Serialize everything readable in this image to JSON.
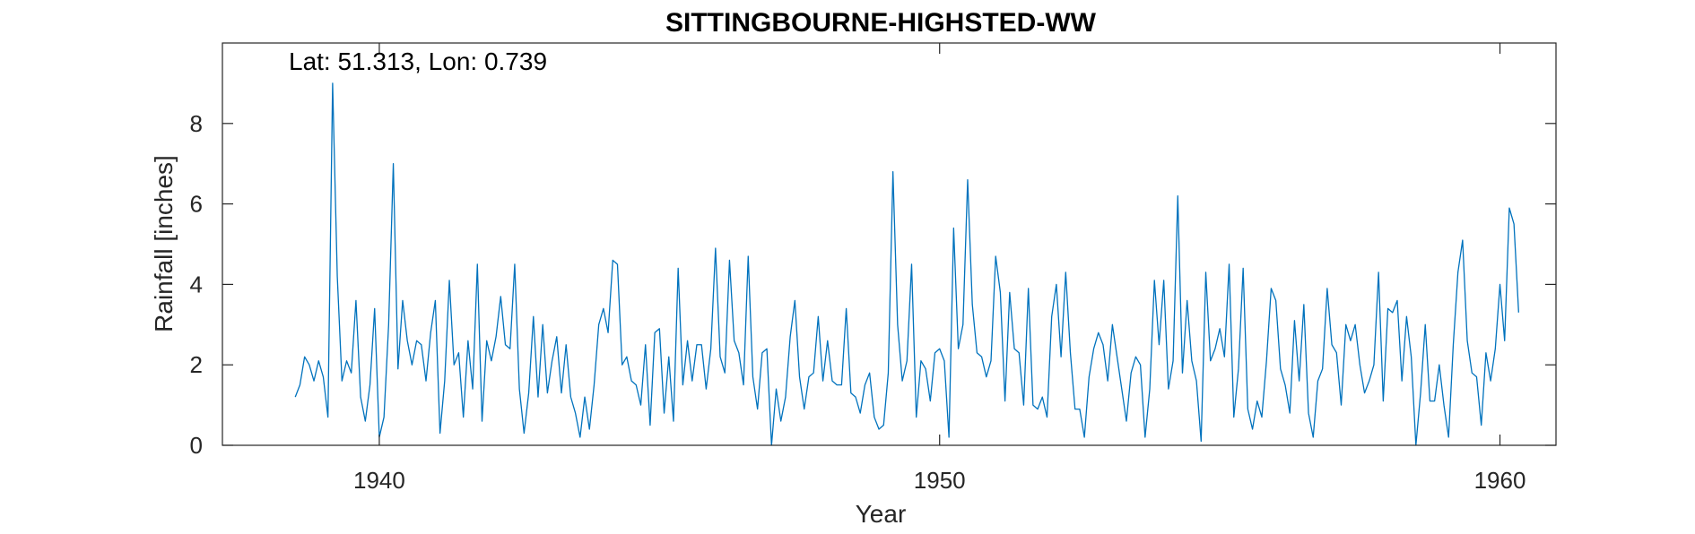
{
  "chart_data": {
    "type": "line",
    "title": "SITTINGBOURNE-HIGHSTED-WW",
    "annotation": "Lat: 51.313, Lon: 0.739",
    "xlabel": "Year",
    "ylabel": "Rainfall [inches]",
    "xlim": [
      1937.2,
      1961.0
    ],
    "ylim": [
      0,
      10
    ],
    "xticks": [
      1940,
      1950,
      1960
    ],
    "yticks": [
      0,
      2,
      4,
      6,
      8
    ],
    "grid": false,
    "line_color": "#0072BD",
    "series": [
      {
        "name": "",
        "start_year": 1938.5,
        "values": [
          1.2,
          1.5,
          2.2,
          2.0,
          1.6,
          2.1,
          1.7,
          0.7,
          9.0,
          4.2,
          1.6,
          2.1,
          1.8,
          3.6,
          1.2,
          0.6,
          1.5,
          3.4,
          0.2,
          0.7,
          3.0,
          7.0,
          1.9,
          3.6,
          2.6,
          2.0,
          2.6,
          2.5,
          1.6,
          2.8,
          3.6,
          0.3,
          1.6,
          4.1,
          2.0,
          2.3,
          0.7,
          2.6,
          1.4,
          4.5,
          0.6,
          2.6,
          2.1,
          2.7,
          3.7,
          2.5,
          2.4,
          4.5,
          1.4,
          0.3,
          1.3,
          3.2,
          1.2,
          3.0,
          1.3,
          2.1,
          2.7,
          1.3,
          2.5,
          1.2,
          0.8,
          0.2,
          1.2,
          0.4,
          1.5,
          3.0,
          3.4,
          2.8,
          4.6,
          4.5,
          2.0,
          2.2,
          1.6,
          1.5,
          1.0,
          2.5,
          0.5,
          2.8,
          2.9,
          0.8,
          2.2,
          0.6,
          4.4,
          1.5,
          2.6,
          1.6,
          2.5,
          2.5,
          1.4,
          2.4,
          4.9,
          2.2,
          1.8,
          4.6,
          2.6,
          2.3,
          1.5,
          4.7,
          1.7,
          0.9,
          2.3,
          2.4,
          0.0,
          1.4,
          0.6,
          1.2,
          2.7,
          3.6,
          1.7,
          0.9,
          1.7,
          1.8,
          3.2,
          1.6,
          2.6,
          1.6,
          1.5,
          1.5,
          3.4,
          1.3,
          1.2,
          0.8,
          1.5,
          1.8,
          0.7,
          0.4,
          0.5,
          1.8,
          6.8,
          3.0,
          1.6,
          2.1,
          4.5,
          0.7,
          2.1,
          1.9,
          1.1,
          2.3,
          2.4,
          2.1,
          0.2,
          5.4,
          2.4,
          3.0,
          6.6,
          3.5,
          2.3,
          2.2,
          1.7,
          2.1,
          4.7,
          3.8,
          1.1,
          3.8,
          2.4,
          2.3,
          1.0,
          3.9,
          1.0,
          0.9,
          1.2,
          0.7,
          3.2,
          4.0,
          2.2,
          4.3,
          2.3,
          0.9,
          0.9,
          0.2,
          1.7,
          2.4,
          2.8,
          2.5,
          1.6,
          3.0,
          2.2,
          1.4,
          0.6,
          1.8,
          2.2,
          2.0,
          0.2,
          1.4,
          4.1,
          2.5,
          4.1,
          1.4,
          2.1,
          6.2,
          1.8,
          3.6,
          2.1,
          1.6,
          0.1,
          4.3,
          2.1,
          2.4,
          2.9,
          2.2,
          4.5,
          0.7,
          1.9,
          4.4,
          0.9,
          0.4,
          1.1,
          0.7,
          2.1,
          3.9,
          3.6,
          1.9,
          1.5,
          0.8,
          3.1,
          1.6,
          3.5,
          0.8,
          0.2,
          1.6,
          1.9,
          3.9,
          2.5,
          2.3,
          1.0,
          3.0,
          2.6,
          3.0,
          2.0,
          1.3,
          1.6,
          2.0,
          4.3,
          1.1,
          3.4,
          3.3,
          3.6,
          1.6,
          3.2,
          2.2,
          0.0,
          1.3,
          3.0,
          1.1,
          1.1,
          2.0,
          1.0,
          0.2,
          2.5,
          4.3,
          5.1,
          2.6,
          1.8,
          1.7,
          0.5,
          2.3,
          1.6,
          2.4,
          4.0,
          2.6,
          5.9,
          5.5,
          3.3
        ]
      }
    ]
  }
}
